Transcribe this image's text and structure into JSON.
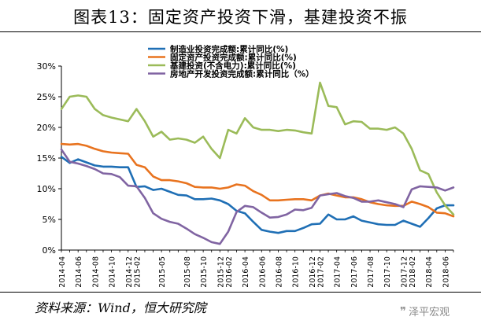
{
  "figure": {
    "title": "图表13：固定资产投资下滑，基建投资不振",
    "source": "资料来源：Wind，恒大研究院",
    "watermark": "泽平宏观"
  },
  "chart_data": {
    "type": "line",
    "title": "",
    "xlabel": "",
    "ylabel": "",
    "ylim": [
      0,
      30
    ],
    "y_ticks": [
      "0%",
      "5%",
      "10%",
      "15%",
      "20%",
      "25%",
      "30%"
    ],
    "y_unit": "%",
    "grid": false,
    "legend_position": "top-center",
    "x": [
      "2014-04",
      "2014-05",
      "2014-06",
      "2014-07",
      "2014-08",
      "2014-09",
      "2014-10",
      "2014-11",
      "2014-12",
      "2015-02",
      "2015-03",
      "2015-04",
      "2015-05",
      "2015-06",
      "2015-07",
      "2015-08",
      "2015-09",
      "2015-10",
      "2015-11",
      "2015-12",
      "2016-02",
      "2016-03",
      "2016-04",
      "2016-05",
      "2016-06",
      "2016-07",
      "2016-08",
      "2016-09",
      "2016-10",
      "2016-11",
      "2016-12",
      "2017-02",
      "2017-03",
      "2017-04",
      "2017-05",
      "2017-06",
      "2017-07",
      "2017-08",
      "2017-09",
      "2017-10",
      "2017-11",
      "2017-12",
      "2018-02",
      "2018-03",
      "2018-04",
      "2018-05",
      "2018-06",
      "2018-07"
    ],
    "x_tick_labels": [
      "2014-04",
      "2014-06",
      "2014-08",
      "2014-10",
      "2014-12",
      "2015-02",
      "2015-05",
      "2015-08",
      "2015-10",
      "2015-12",
      "2016-02",
      "2016-04",
      "2016-06",
      "2016-08",
      "2016-10",
      "2016-12",
      "2017-02",
      "2017-04",
      "2017-06",
      "2017-08",
      "2017-10",
      "2017-12",
      "2018-02",
      "2018-04",
      "2018-06"
    ],
    "series": [
      {
        "name": "制造业投资完成额:累计同比(%)",
        "color": "#1f6fb5",
        "values": [
          15.2,
          14.2,
          14.8,
          14.3,
          13.8,
          13.6,
          13.6,
          13.5,
          13.5,
          10.3,
          10.4,
          9.8,
          10.0,
          9.5,
          9.0,
          8.9,
          8.3,
          8.3,
          8.4,
          8.1,
          7.5,
          6.4,
          6.0,
          4.6,
          3.3,
          3.0,
          2.8,
          3.1,
          3.1,
          3.6,
          4.2,
          4.3,
          5.8,
          5.0,
          5.0,
          5.5,
          4.8,
          4.5,
          4.2,
          4.1,
          4.1,
          4.8,
          4.3,
          3.8,
          5.2,
          6.8,
          7.3,
          7.3
        ]
      },
      {
        "name": "固定资产投资完成额:累计同比(%)",
        "color": "#e8731f",
        "values": [
          17.3,
          17.2,
          17.3,
          17.0,
          16.5,
          16.1,
          15.9,
          15.8,
          15.7,
          13.9,
          13.5,
          12.0,
          11.4,
          11.4,
          11.2,
          10.9,
          10.3,
          10.2,
          10.2,
          10.0,
          10.2,
          10.7,
          10.5,
          9.6,
          9.0,
          8.1,
          8.1,
          8.2,
          8.3,
          8.3,
          8.1,
          8.9,
          9.2,
          8.9,
          8.6,
          8.6,
          8.3,
          7.8,
          7.5,
          7.3,
          7.2,
          7.2,
          7.9,
          7.5,
          7.0,
          6.1,
          6.0,
          5.5
        ]
      },
      {
        "name": "基建投资(不含电力):累计同比(%)",
        "color": "#9bbb59",
        "values": [
          23.0,
          25.0,
          25.2,
          25.0,
          23.0,
          22.0,
          21.6,
          21.3,
          21.0,
          23.0,
          21.0,
          18.5,
          19.3,
          18.0,
          18.2,
          18.0,
          17.5,
          18.5,
          16.5,
          15.0,
          19.6,
          19.0,
          21.5,
          20.0,
          19.6,
          19.6,
          19.4,
          19.6,
          19.5,
          19.2,
          19.0,
          27.3,
          23.5,
          23.3,
          20.5,
          21.0,
          20.9,
          19.8,
          19.8,
          19.6,
          20.0,
          19.0,
          16.5,
          13.0,
          12.4,
          9.4,
          7.3,
          5.8
        ]
      },
      {
        "name": "房地产开发投资完成额:累计同比（%）",
        "color": "#8064a2",
        "values": [
          16.4,
          14.4,
          14.1,
          13.7,
          13.2,
          12.5,
          12.4,
          11.9,
          10.5,
          10.4,
          8.5,
          6.0,
          5.1,
          4.6,
          4.3,
          3.5,
          2.6,
          2.0,
          1.3,
          1.0,
          3.0,
          6.2,
          7.2,
          7.0,
          6.1,
          5.3,
          5.4,
          5.8,
          6.6,
          6.5,
          6.9,
          8.9,
          9.1,
          9.3,
          8.8,
          8.5,
          7.9,
          7.9,
          8.1,
          7.8,
          7.5,
          7.0,
          9.9,
          10.4,
          10.3,
          10.2,
          9.7,
          10.2
        ]
      }
    ]
  }
}
